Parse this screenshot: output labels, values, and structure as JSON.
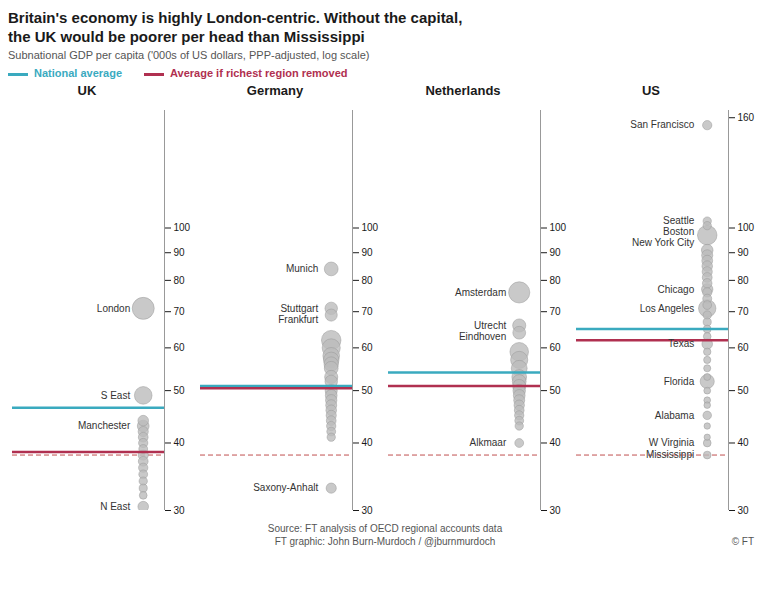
{
  "chart_data": {
    "type": "strip",
    "title": "Britain's economy is highly London-centric. Without the capital,\nthe UK would be poorer per head than Mississippi",
    "subtitle": "Subnational GDP per capita ('000s of US dollars, PPP-adjusted, log scale)",
    "source": [
      "Source: FT analysis of OECD regional accounts data",
      "FT graphic: John Burn-Murdoch / @jburnmurdoch"
    ],
    "copyright": "© FT",
    "log": "y",
    "grid": false,
    "ylim": [
      30,
      165
    ],
    "yticks": [
      30,
      40,
      50,
      60,
      70,
      80,
      90,
      100
    ],
    "color": "#bbbbbb",
    "edge_color": "#999999",
    "series": [
      {
        "name": "UK",
        "values": [
          71,
          49,
          43,
          30.5,
          44,
          42,
          41,
          40,
          39,
          38,
          37,
          36,
          35,
          34,
          33,
          32
        ],
        "sizes": [
          280,
          180,
          80,
          65,
          65,
          60,
          55,
          50,
          45,
          60,
          55,
          50,
          45,
          40,
          38,
          35
        ],
        "labels": [
          "London",
          "S East",
          "Manchester",
          "N East",
          null,
          null,
          null,
          null,
          null,
          null,
          null,
          null,
          null,
          null,
          null,
          null
        ]
      },
      {
        "name": "Germany",
        "values": [
          84,
          71,
          69,
          33,
          62,
          60,
          58,
          57,
          56,
          55,
          53,
          52,
          50,
          49,
          48,
          47,
          46,
          45,
          44,
          43,
          42,
          41
        ],
        "sizes": [
          110,
          90,
          85,
          60,
          220,
          190,
          160,
          140,
          120,
          110,
          100,
          90,
          85,
          80,
          75,
          70,
          65,
          60,
          55,
          50,
          45,
          40
        ],
        "labels": [
          "Munich",
          "Stuttgart",
          "Frankfurt",
          "Saxony-Anhalt",
          null,
          null,
          null,
          null,
          null,
          null,
          null,
          null,
          null,
          null,
          null,
          null,
          null,
          null,
          null,
          null,
          null,
          null
        ]
      },
      {
        "name": "Netherlands",
        "values": [
          76,
          66,
          64,
          40,
          59,
          57,
          55,
          53,
          52,
          51,
          50,
          49,
          48,
          47,
          46,
          45,
          44,
          43
        ],
        "sizes": [
          260,
          100,
          95,
          45,
          200,
          170,
          145,
          125,
          110,
          100,
          90,
          80,
          70,
          62,
          55,
          50,
          45,
          40
        ],
        "labels": [
          "Amsterdam",
          "Utrecht",
          "Eindhoven",
          "Alkmaar",
          null,
          null,
          null,
          null,
          null,
          null,
          null,
          null,
          null,
          null,
          null,
          null,
          null,
          null
        ]
      },
      {
        "name": "US",
        "yticks": [
          30,
          40,
          50,
          60,
          70,
          80,
          90,
          100,
          160
        ],
        "values": [
          155,
          103,
          101,
          97,
          77,
          71,
          61,
          52,
          45,
          40,
          38,
          91,
          89,
          87,
          85,
          83,
          81,
          79,
          76,
          74,
          72,
          69,
          67,
          65,
          63,
          59,
          57,
          55,
          53,
          50,
          48,
          47,
          43,
          41
        ],
        "sizes": [
          50,
          40,
          40,
          220,
          75,
          175,
          65,
          115,
          42,
          35,
          35,
          78,
          72,
          68,
          64,
          60,
          56,
          53,
          50,
          47,
          44,
          41,
          38,
          36,
          34,
          32,
          30,
          29,
          28,
          27,
          26,
          25,
          24,
          23
        ],
        "labels": [
          "San Francisco",
          "Seattle",
          "Boston",
          "New York City",
          "Chicago",
          "Los Angeles",
          "Texas",
          "Florida",
          "Alabama",
          "W Virginia",
          "Mississippi",
          null,
          null,
          null,
          null,
          null,
          null,
          null,
          null,
          null,
          null,
          null,
          null,
          null,
          null,
          null,
          null,
          null,
          null,
          null,
          null,
          null,
          null,
          null
        ]
      }
    ],
    "averages": [
      {
        "name": "National average",
        "color": "#3aaabf",
        "values": [
          46.5,
          51,
          54,
          65
        ]
      },
      {
        "name": "Average if richest region removed",
        "color": "#b03050",
        "values": [
          38.5,
          50.5,
          51,
          62
        ]
      }
    ],
    "reference_line": {
      "value": 38,
      "color": "#c05050",
      "line_style": "dashed"
    }
  }
}
